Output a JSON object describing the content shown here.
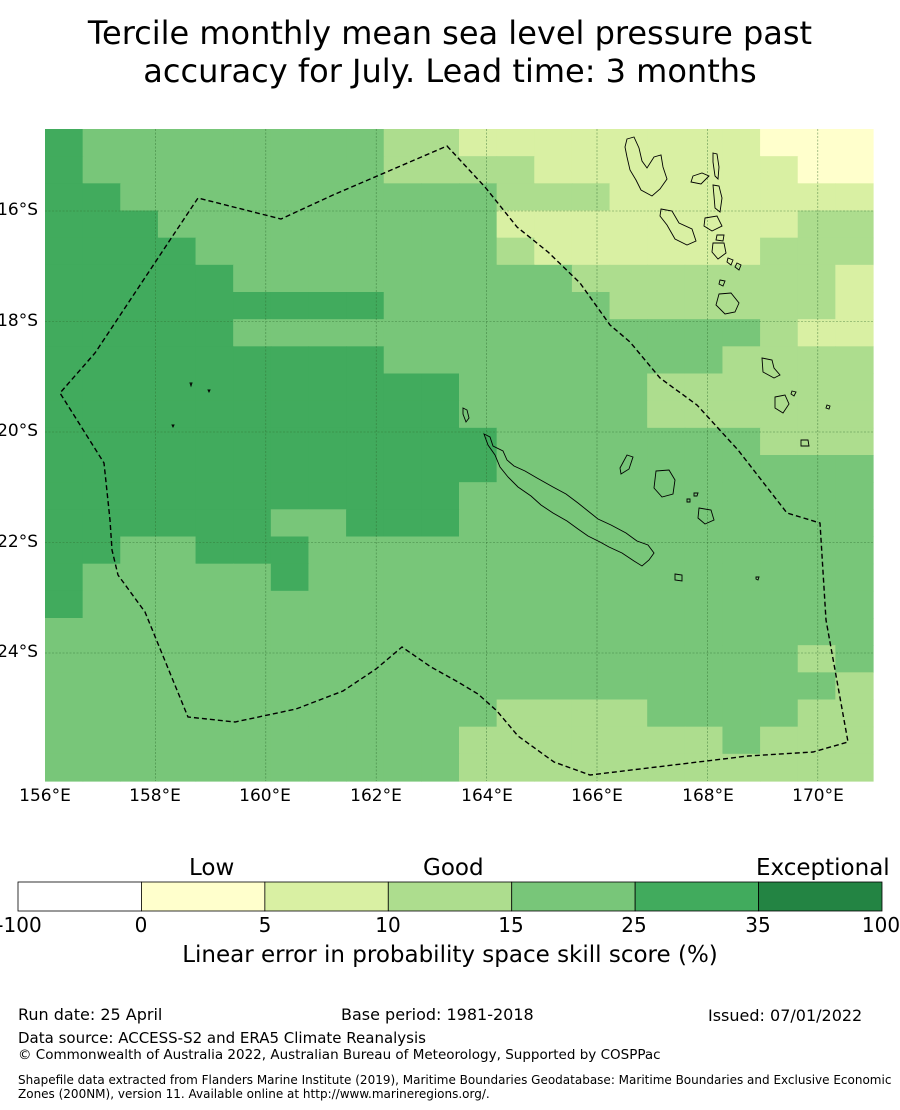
{
  "title_line1": "Tercile monthly mean sea level pressure past",
  "title_line2": "accuracy for July. Lead time: 3 months",
  "map": {
    "lon_labels": [
      "156°E",
      "158°E",
      "160°E",
      "162°E",
      "164°E",
      "166°E",
      "168°E",
      "170°E"
    ],
    "lat_labels": [
      "16°S",
      "18°S",
      "20°S",
      "22°S",
      "24°S"
    ],
    "boundary": "Exclusive Economic Zone (200NM) dashed outline"
  },
  "colorbar": {
    "categories": [
      "Low",
      "Good",
      "Exceptional"
    ],
    "ticks": [
      "-100",
      "0",
      "5",
      "10",
      "15",
      "25",
      "35",
      "100"
    ],
    "colors": [
      "#ffffff",
      "#ffffcc",
      "#d9f0a3",
      "#addd8e",
      "#78c679",
      "#41ab5d",
      "#238443"
    ],
    "label": "Linear error in probability space skill score (%)"
  },
  "chart_data": {
    "type": "heatmap",
    "lon_range": [
      156.0,
      171.0
    ],
    "lat_range": [
      -14.5,
      -26.3
    ],
    "cell_size_deg": [
      0.833,
      0.545
    ],
    "value_units": "category index (0=below 0, 1=0-5, 2=5-10, 3=10-15, 4=15-25, 5=25-35, 6=35-100)",
    "grid": [
      "5444444443322222222111",
      "5444444443333222222211",
      "5544444444443332222222",
      "5554444444442222222233",
      "5555444444443222222333",
      "5555544444444433333332",
      "5555555554444443333332",
      "5555544444444444444322",
      "5555555554444444443333",
      "5555555555544444333333",
      "5555555555544444333333",
      "5555555555554444444333",
      "5555555555554444444444",
      "5555555555544444444444",
      "5555554455544444444444",
      "5544555444444444444444",
      "5444445444444444444444",
      "5444444444444444444444",
      "4444444444444444444444",
      "4444444444444444444434",
      "4444444444444444444443",
      "4444444444443333444433",
      "4444444444433333334333",
      "4444444444433333333333"
    ]
  },
  "footer": {
    "run_date": "Run date: 25 April",
    "base_period": "Base period: 1981-2018",
    "issued": "Issued: 07/01/2022",
    "data_source": "Data source: ACCESS-S2 and ERA5 Climate Reanalysis",
    "copyright": "© Commonwealth of Australia 2022, Australian Bureau of Meteorology, Supported by COSPPac",
    "shapefile_line1": "Shapefile data extracted from Flanders Marine Institute (2019), Maritime Boundaries Geodatabase: Maritime Boundaries and Exclusive Economic",
    "shapefile_line2": "Zones (200NM), version 11. Available online at http://www.marineregions.org/."
  }
}
